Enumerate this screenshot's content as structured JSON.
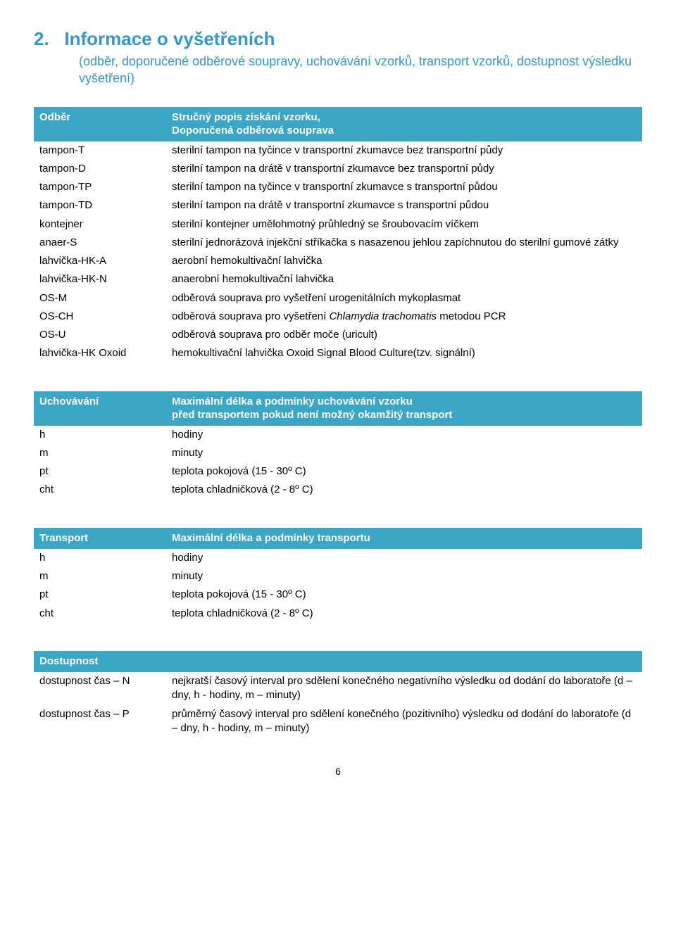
{
  "section": {
    "number": "2.",
    "title": "Informace o vyšetřeních",
    "subtitle": "(odběr, doporučené odběrové soupravy, uchovávání vzorků, transport vzorků, dostupnost výsledku vyšetření)"
  },
  "colors": {
    "heading": "#3399cc",
    "table_header_bg": "#3ca6c6",
    "table_header_text": "#ffffff",
    "body_text": "#000000",
    "page_bg": "#ffffff"
  },
  "tables": {
    "odber": {
      "header_left": "Odběr",
      "header_right_line1": "Stručný popis získání vzorku,",
      "header_right_line2": "Doporučená odběrová souprava",
      "rows": [
        {
          "k": "tampon-T",
          "v": "sterilní tampon na tyčince v transportní zkumavce bez transportní půdy"
        },
        {
          "k": "tampon-D",
          "v": "sterilní tampon na drátě v transportní zkumavce bez transportní půdy"
        },
        {
          "k": "tampon-TP",
          "v": "sterilní tampon na tyčince v transportní zkumavce s transportní půdou"
        },
        {
          "k": "tampon-TD",
          "v": "sterilní tampon na drátě v transportní zkumavce s transportní půdou"
        },
        {
          "k": "kontejner",
          "v": "sterilní kontejner umělohmotný průhledný se šroubovacím víčkem"
        },
        {
          "k": "anaer-S",
          "v": "sterilní jednorázová injekční stříkačka s nasazenou jehlou zapíchnutou do sterilní gumové zátky"
        },
        {
          "k": "lahvička-HK-A",
          "v": "aerobní hemokultivační lahvička"
        },
        {
          "k": "lahvička-HK-N",
          "v": "anaerobní hemokultivační lahvička"
        },
        {
          "k": "OS-M",
          "v": "odběrová souprava pro vyšetření urogenitálních mykoplasmat"
        },
        {
          "k": "OS-CH",
          "v_pre": "odběrová souprava pro vyšetření ",
          "v_ital": "Chlamydia trachomatis",
          "v_post": " metodou PCR"
        },
        {
          "k": "OS-U",
          "v": "odběrová souprava pro odběr moče (uricult)"
        },
        {
          "k": "lahvička-HK Oxoid",
          "v": "hemokultivační lahvička Oxoid Signal Blood Culture(tzv. signální)"
        }
      ]
    },
    "uchovavani": {
      "header_left": "Uchovávání",
      "header_right_line1": "Maximální délka a podmínky uchovávání vzorku",
      "header_right_line2": "před transportem pokud není možný okamžitý transport",
      "rows": [
        {
          "k": "h",
          "v": "hodiny"
        },
        {
          "k": "m",
          "v": "minuty"
        },
        {
          "k": "pt",
          "v": "teplota pokojová (15 - 30º C)"
        },
        {
          "k": "cht",
          "v": "teplota chladničková (2 - 8º C)"
        }
      ]
    },
    "transport": {
      "header_left": "Transport",
      "header_right": "Maximální délka a podmínky transportu",
      "rows": [
        {
          "k": "h",
          "v": "hodiny"
        },
        {
          "k": "m",
          "v": "minuty"
        },
        {
          "k": "pt",
          "v": "teplota pokojová (15 - 30º C)"
        },
        {
          "k": "cht",
          "v": "teplota chladničková (2 - 8º C)"
        }
      ]
    },
    "dostupnost": {
      "header_left": "Dostupnost",
      "rows": [
        {
          "k": "dostupnost čas – N",
          "v": "nejkratší časový interval  pro sdělení konečného negativního výsledku od dodání do laboratoře (d – dny, h -  hodiny, m – minuty)"
        },
        {
          "k": "dostupnost čas  – P",
          "v": "průměrný časový interval pro sdělení konečného (pozitivního) výsledku od dodání do laboratoře (d – dny, h -  hodiny, m – minuty)"
        }
      ]
    }
  },
  "page_number": "6"
}
